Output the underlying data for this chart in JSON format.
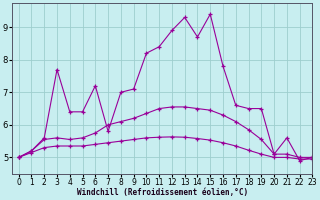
{
  "xlabel": "Windchill (Refroidissement éolien,°C)",
  "background_color": "#c8eef0",
  "grid_color": "#9ecece",
  "line_color": "#990099",
  "x_values": [
    0,
    1,
    2,
    3,
    4,
    5,
    6,
    7,
    8,
    9,
    10,
    11,
    12,
    13,
    14,
    15,
    16,
    17,
    18,
    19,
    20,
    21,
    22,
    23
  ],
  "series_peaked": [
    5.0,
    5.2,
    5.6,
    7.7,
    6.4,
    6.4,
    7.2,
    5.8,
    7.0,
    7.1,
    8.2,
    8.4,
    8.9,
    9.3,
    8.7,
    9.4,
    7.8,
    6.6,
    6.5,
    6.5,
    5.1,
    5.6,
    4.9,
    5.0
  ],
  "series_upper": [
    5.0,
    5.2,
    5.55,
    5.6,
    5.55,
    5.6,
    5.75,
    6.0,
    6.1,
    6.2,
    6.35,
    6.5,
    6.55,
    6.55,
    6.5,
    6.45,
    6.3,
    6.1,
    5.85,
    5.55,
    5.1,
    5.1,
    5.0,
    5.0
  ],
  "series_lower": [
    5.0,
    5.15,
    5.3,
    5.35,
    5.35,
    5.35,
    5.4,
    5.45,
    5.5,
    5.55,
    5.6,
    5.62,
    5.63,
    5.62,
    5.58,
    5.53,
    5.45,
    5.35,
    5.22,
    5.1,
    5.0,
    5.0,
    4.95,
    4.95
  ],
  "ylim": [
    4.5,
    9.75
  ],
  "xlim": [
    -0.5,
    23
  ],
  "yticks": [
    5,
    6,
    7,
    8,
    9
  ],
  "xticks": [
    0,
    1,
    2,
    3,
    4,
    5,
    6,
    7,
    8,
    9,
    10,
    11,
    12,
    13,
    14,
    15,
    16,
    17,
    18,
    19,
    20,
    21,
    22,
    23
  ],
  "tick_fontsize": 5.5,
  "xlabel_fontsize": 5.5
}
